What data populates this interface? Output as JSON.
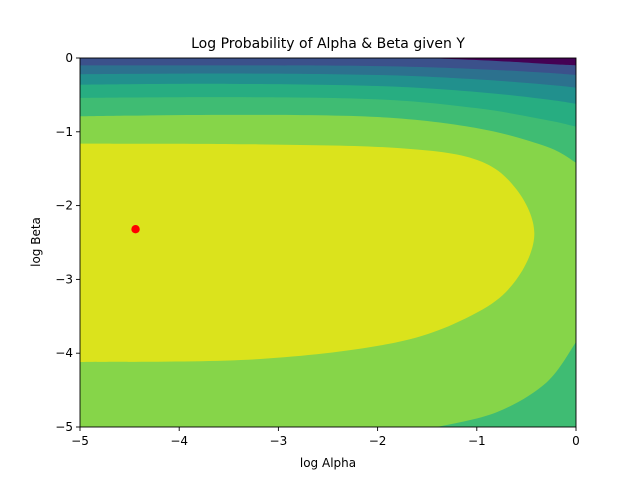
{
  "chart_data": {
    "type": "contour",
    "title": "Log Probability of Alpha & Beta given Y",
    "xlabel": "log Alpha",
    "ylabel": "log Beta",
    "xlim": [
      -5,
      0
    ],
    "ylim": [
      -5,
      0
    ],
    "xticks": [
      "−5",
      "−4",
      "−3",
      "−2",
      "−1",
      "0"
    ],
    "yticks": [
      "0",
      "−1",
      "−2",
      "−3",
      "−4",
      "−5"
    ],
    "grid": false,
    "colormap": [
      "#440154",
      "#3b518b",
      "#2c718e",
      "#21908d",
      "#27ad81",
      "#3fbc73",
      "#86d549",
      "#dbe31c"
    ],
    "marker": {
      "x": -4.44,
      "y": -2.32,
      "color": "#ff0000"
    },
    "contour_boundaries": [
      {
        "name": "level-1",
        "color": "#86d549",
        "points": [
          [
            -5,
            -4.12
          ],
          [
            -3.2,
            -4.08
          ],
          [
            -1.8,
            -3.85
          ],
          [
            -1.0,
            -3.45
          ],
          [
            -0.6,
            -3.0
          ],
          [
            -0.42,
            -2.38
          ],
          [
            -0.6,
            -1.78
          ],
          [
            -1.0,
            -1.38
          ],
          [
            -1.8,
            -1.22
          ],
          [
            -3.2,
            -1.17
          ],
          [
            -5,
            -1.16
          ]
        ]
      },
      {
        "name": "level-2",
        "color": "#3fbc73",
        "points": [
          [
            -5,
            -0.79
          ],
          [
            -3.5,
            -0.77
          ],
          [
            -2.0,
            -0.8
          ],
          [
            -1.0,
            -0.95
          ],
          [
            -0.3,
            -1.2
          ],
          [
            0,
            -1.42
          ]
        ]
      },
      {
        "name": "level-3",
        "color": "#27ad81",
        "points": [
          [
            -5,
            -0.54
          ],
          [
            -3.5,
            -0.53
          ],
          [
            -2.0,
            -0.56
          ],
          [
            -1.0,
            -0.68
          ],
          [
            -0.3,
            -0.84
          ],
          [
            0,
            -0.93
          ]
        ]
      },
      {
        "name": "level-4",
        "color": "#21908d",
        "points": [
          [
            -5,
            -0.36
          ],
          [
            -3.5,
            -0.35
          ],
          [
            -2.0,
            -0.38
          ],
          [
            -1.0,
            -0.46
          ],
          [
            -0.3,
            -0.56
          ],
          [
            0,
            -0.62
          ]
        ]
      },
      {
        "name": "level-5",
        "color": "#2c718e",
        "points": [
          [
            -5,
            -0.22
          ],
          [
            -3.5,
            -0.21
          ],
          [
            -2.0,
            -0.23
          ],
          [
            -1.0,
            -0.29
          ],
          [
            -0.3,
            -0.36
          ],
          [
            0,
            -0.4
          ]
        ]
      },
      {
        "name": "level-6",
        "color": "#3b518b",
        "points": [
          [
            -5,
            -0.1
          ],
          [
            -3.5,
            -0.1
          ],
          [
            -2.0,
            -0.11
          ],
          [
            -1.0,
            -0.15
          ],
          [
            -0.3,
            -0.2
          ],
          [
            0,
            -0.23
          ]
        ]
      },
      {
        "name": "level-7",
        "color": "#440154",
        "points": [
          [
            -1.5,
            0
          ],
          [
            -0.8,
            -0.04
          ],
          [
            -0.3,
            -0.08
          ],
          [
            0,
            -0.1
          ]
        ]
      }
    ],
    "lower_right_region": {
      "color": "#3fbc73",
      "points": [
        [
          -1.4,
          -5
        ],
        [
          -0.8,
          -4.8
        ],
        [
          -0.3,
          -4.4
        ],
        [
          0,
          -3.85
        ]
      ]
    }
  }
}
